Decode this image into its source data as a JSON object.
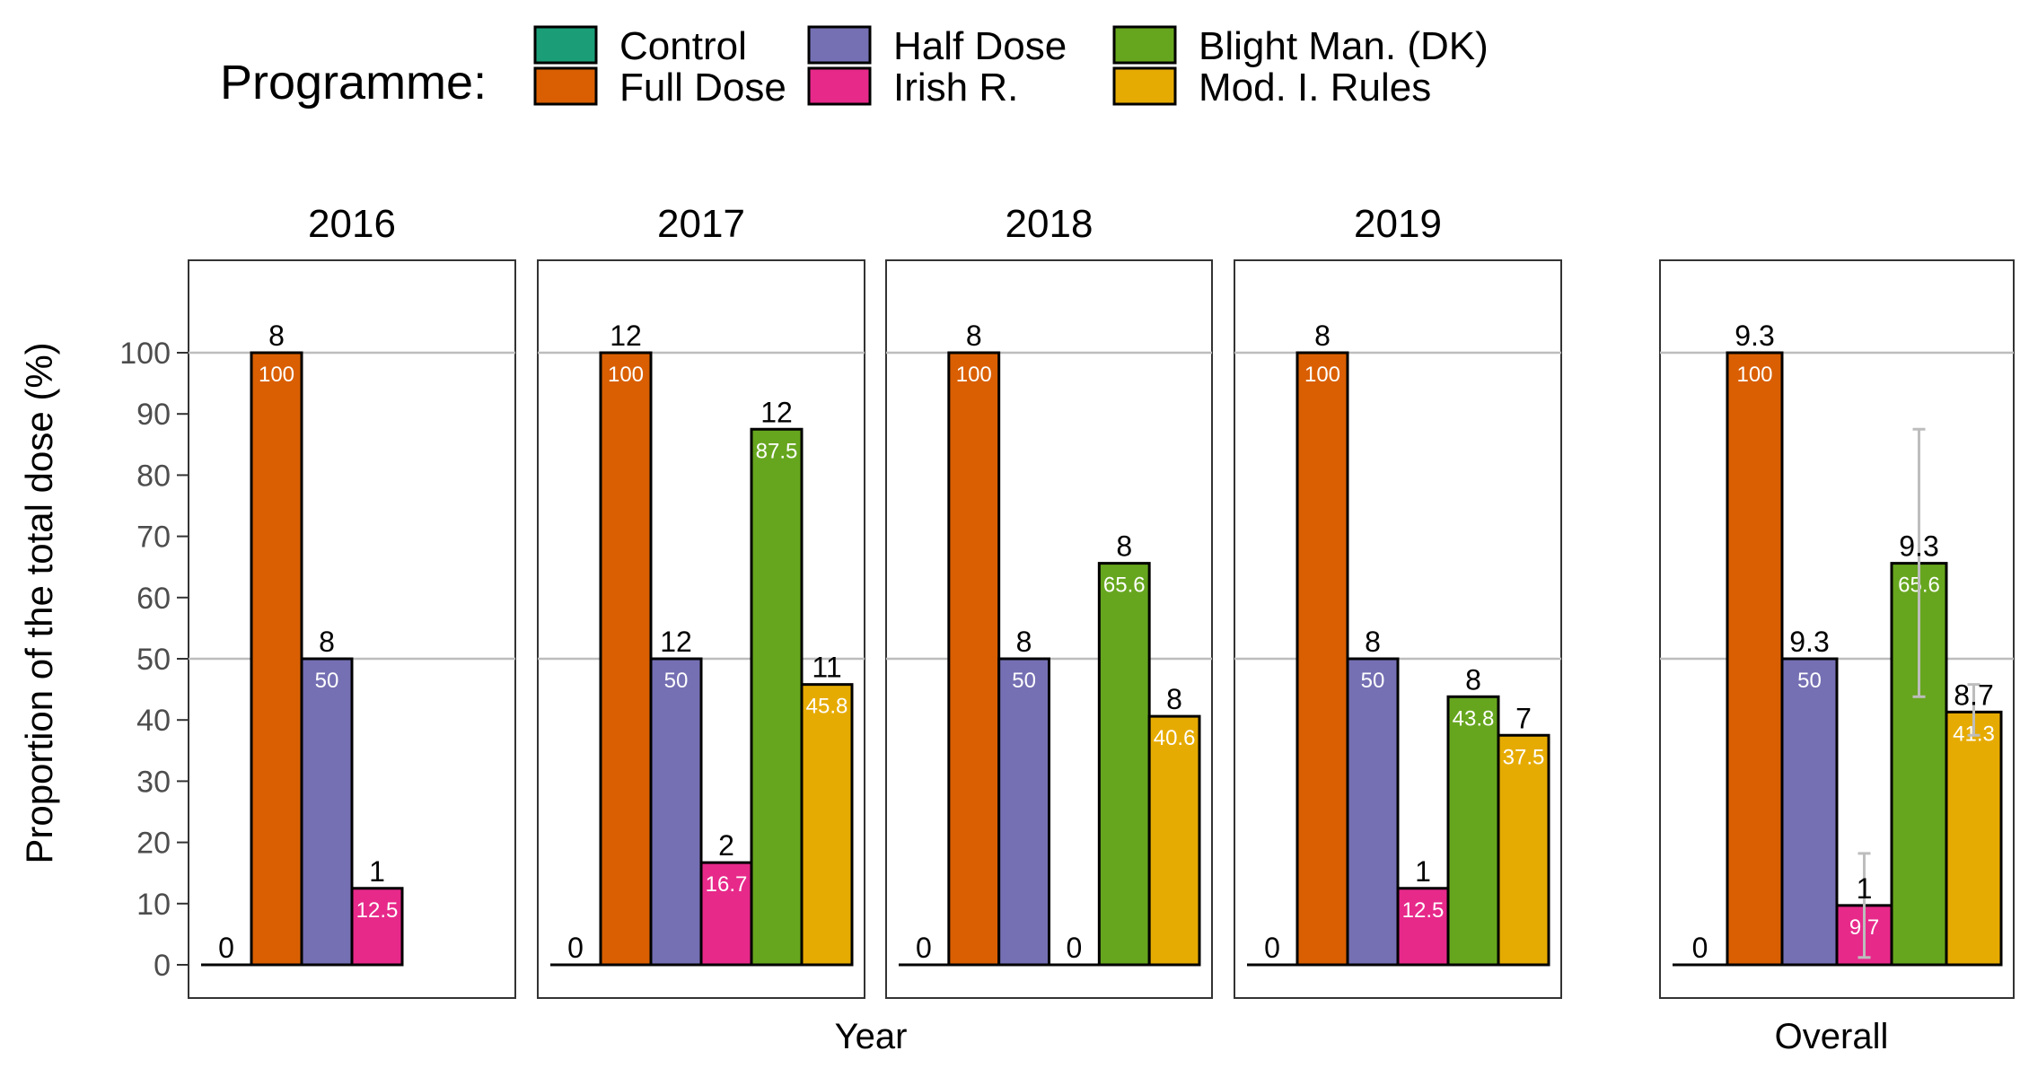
{
  "legend": {
    "title": "Programme:",
    "items": [
      {
        "label": "Control",
        "color": "#1b9e77"
      },
      {
        "label": "Full Dose",
        "color": "#d95f02"
      },
      {
        "label": "Half Dose",
        "color": "#7570b3"
      },
      {
        "label": "Irish R.",
        "color": "#e7298a"
      },
      {
        "label": "Blight Man. (DK)",
        "color": "#66a61e"
      },
      {
        "label": "Mod. I. Rules",
        "color": "#e6ab02"
      }
    ]
  },
  "axes": {
    "ylabel": "Proportion of the total dose (%)",
    "xlabel_years": "Year",
    "xlabel_overall": "Overall",
    "yticks": [
      "0",
      "10",
      "20",
      "30",
      "40",
      "50",
      "60",
      "70",
      "80",
      "90",
      "100"
    ]
  },
  "chart_data": {
    "type": "bar",
    "ylabel": "Proportion of the total dose (%)",
    "ylim": [
      0,
      110
    ],
    "grid": "y at 50 and 100",
    "legend_position": "top",
    "series_names": [
      "Control",
      "Full Dose",
      "Half Dose",
      "Irish R.",
      "Blight Man. (DK)",
      "Mod. I. Rules"
    ],
    "panels": [
      {
        "title": "2016",
        "bars": [
          {
            "series": "Control",
            "value": 0,
            "count": "0"
          },
          {
            "series": "Full Dose",
            "value": 100,
            "count": "8",
            "label": "100"
          },
          {
            "series": "Half Dose",
            "value": 50,
            "count": "8",
            "label": "50"
          },
          {
            "series": "Irish R.",
            "value": 12.5,
            "count": "1",
            "label": "12.5"
          }
        ]
      },
      {
        "title": "2017",
        "bars": [
          {
            "series": "Control",
            "value": 0,
            "count": "0"
          },
          {
            "series": "Full Dose",
            "value": 100,
            "count": "12",
            "label": "100"
          },
          {
            "series": "Half Dose",
            "value": 50,
            "count": "12",
            "label": "50"
          },
          {
            "series": "Irish R.",
            "value": 16.7,
            "count": "2",
            "label": "16.7"
          },
          {
            "series": "Blight Man. (DK)",
            "value": 87.5,
            "count": "12",
            "label": "87.5"
          },
          {
            "series": "Mod. I. Rules",
            "value": 45.8,
            "count": "11",
            "label": "45.8"
          }
        ]
      },
      {
        "title": "2018",
        "bars": [
          {
            "series": "Control",
            "value": 0,
            "count": "0"
          },
          {
            "series": "Full Dose",
            "value": 100,
            "count": "8",
            "label": "100"
          },
          {
            "series": "Half Dose",
            "value": 50,
            "count": "8",
            "label": "50"
          },
          {
            "series": "Irish R.",
            "value": 0,
            "count": "0"
          },
          {
            "series": "Blight Man. (DK)",
            "value": 65.6,
            "count": "8",
            "label": "65.6"
          },
          {
            "series": "Mod. I. Rules",
            "value": 40.6,
            "count": "8",
            "label": "40.6"
          }
        ]
      },
      {
        "title": "2019",
        "bars": [
          {
            "series": "Control",
            "value": 0,
            "count": "0"
          },
          {
            "series": "Full Dose",
            "value": 100,
            "count": "8",
            "label": "100"
          },
          {
            "series": "Half Dose",
            "value": 50,
            "count": "8",
            "label": "50"
          },
          {
            "series": "Irish R.",
            "value": 12.5,
            "count": "1",
            "label": "12.5"
          },
          {
            "series": "Blight Man. (DK)",
            "value": 43.8,
            "count": "8",
            "label": "43.8"
          },
          {
            "series": "Mod. I. Rules",
            "value": 37.5,
            "count": "7",
            "label": "37.5"
          }
        ]
      },
      {
        "title": "",
        "bars": [
          {
            "series": "Control",
            "value": 0,
            "count": "0",
            "err": [
              0,
              0
            ]
          },
          {
            "series": "Full Dose",
            "value": 100,
            "count": "9.3",
            "label": "100",
            "err": [
              100,
              100
            ]
          },
          {
            "series": "Half Dose",
            "value": 50,
            "count": "9.3",
            "label": "50",
            "err": [
              50,
              50
            ]
          },
          {
            "series": "Irish R.",
            "value": 9.7,
            "count": "1",
            "label": "9.7",
            "err": [
              1.2,
              18.2
            ]
          },
          {
            "series": "Blight Man. (DK)",
            "value": 65.6,
            "count": "9.3",
            "label": "65.6",
            "err": [
              43.8,
              87.5
            ]
          },
          {
            "series": "Mod. I. Rules",
            "value": 41.3,
            "count": "8.7",
            "label": "41.3",
            "err": [
              37.5,
              45.8
            ]
          }
        ]
      }
    ]
  }
}
